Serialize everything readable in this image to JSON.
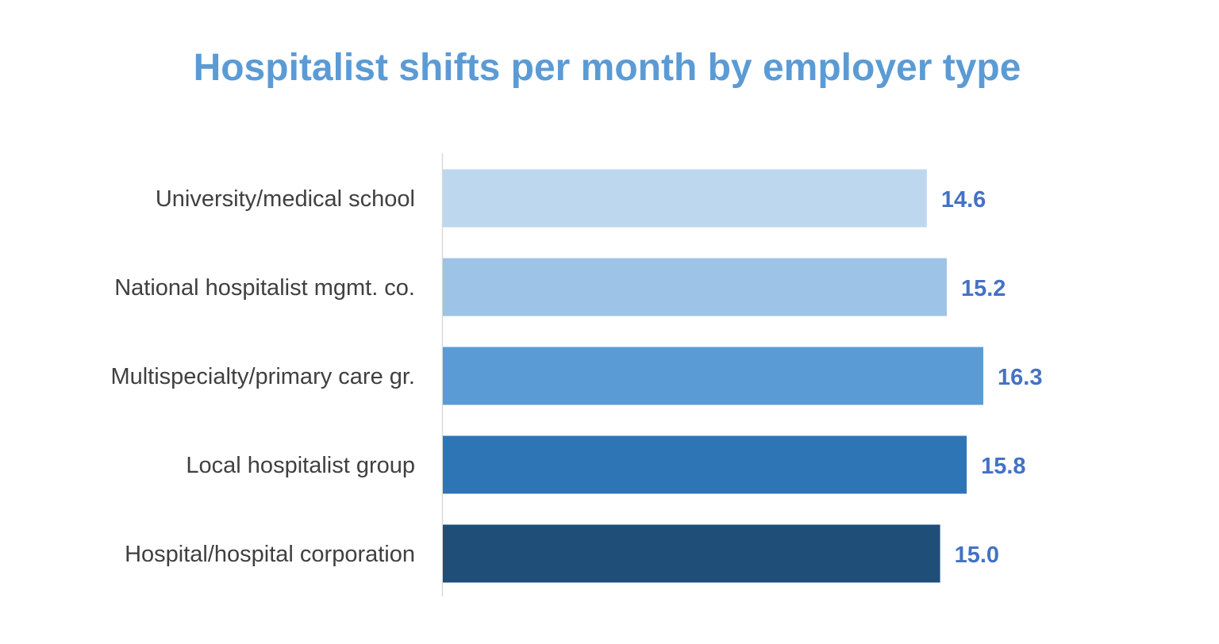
{
  "chart_data": {
    "type": "bar",
    "orientation": "horizontal",
    "title": "Hospitalist shifts per month by employer type",
    "xlabel": "",
    "ylabel": "",
    "xlim": [
      0,
      16.3
    ],
    "grid": false,
    "legend": "none",
    "categories": [
      "University/medical school",
      "National hospitalist mgmt. co.",
      "Multispecialty/primary care gr.",
      "Local hospitalist group",
      "Hospital/hospital corporation"
    ],
    "values": [
      14.6,
      15.2,
      16.3,
      15.8,
      15.0
    ],
    "value_labels": [
      "14.6",
      "15.2",
      "16.3",
      "15.8",
      "15.0"
    ],
    "colors": [
      "#BDD7EE",
      "#9DC3E6",
      "#5B9BD5",
      "#2E75B6",
      "#1F4E79"
    ],
    "label_color": "#4472C4",
    "title_color": "#5B9BD5"
  }
}
